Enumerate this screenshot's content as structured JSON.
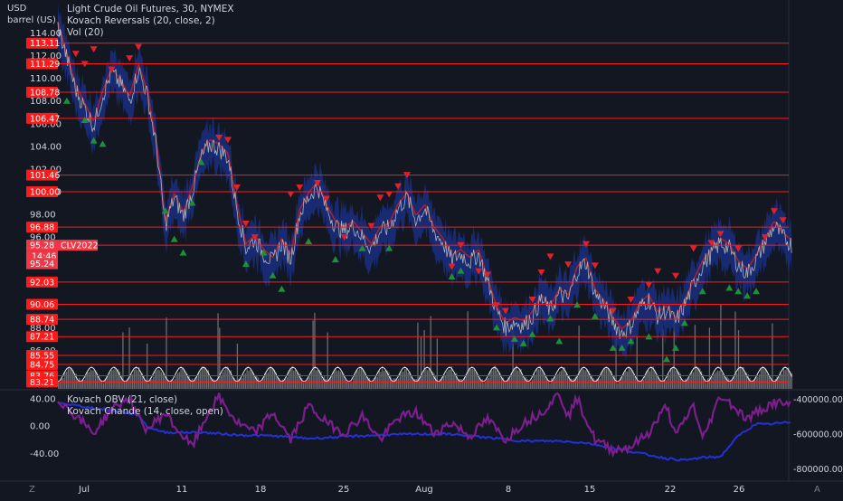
{
  "header": {
    "currency": "USD",
    "unit": "barrel (US)",
    "title": "Light Crude Oil Futures, 30, NYMEX",
    "indicators": [
      "Kovach Reversals (20, close, 2)",
      "Vol (20)"
    ]
  },
  "lower_pane": {
    "indicators": [
      "Kovach OBV (21, close)",
      "Kovach Chande (14, close, open)"
    ]
  },
  "bottom_bar": {
    "left_button": "Z",
    "right_button": "A"
  },
  "colors": {
    "background": "#131722",
    "level_line": "#ff1a1a",
    "price_line": "#b0b0b0",
    "band": "#1a2f80",
    "band_red": "#c81e1e",
    "up_marker": "#1f8f3a",
    "down_marker": "#e0202a",
    "volume": "#8a8a8a",
    "obv": "#2430d8",
    "chande": "#7b1f8c",
    "current_price": "#f23645"
  },
  "chart_data": [
    {
      "type": "line",
      "name": "price",
      "xticks": [
        "Jul",
        "11",
        "18",
        "25",
        "Aug",
        "8",
        "15",
        "22",
        "26"
      ],
      "yticks": [
        "114.00",
        "112.00",
        "110.00",
        "108.00",
        "106.00",
        "104.00",
        "102.00",
        "100.00",
        "98.00",
        "96.00",
        "90.00",
        "88.00",
        "86.00"
      ],
      "ylim": [
        82.6,
        115.8
      ],
      "level_lines": [
        113.11,
        111.29,
        108.78,
        106.47,
        101.46,
        100.0,
        96.88,
        95.28,
        92.03,
        90.06,
        88.74,
        87.21,
        85.55,
        84.75,
        83.76,
        83.21
      ],
      "level_labels": [
        "113.11",
        "111.29",
        "108.78",
        "106.47",
        "101.46",
        "100.00",
        "96.88",
        "92.03",
        "90.06",
        "88.74",
        "87.21",
        "85.55",
        "84.75",
        "83.76",
        "83.21"
      ],
      "top_line": 117.0,
      "last_price": {
        "value": "95.28",
        "symbol": "CLV2022",
        "countdown": "14:46",
        "bid": "95.24"
      },
      "x_range": [
        0,
        100
      ],
      "price_keypoints": [
        [
          0,
          114.6
        ],
        [
          2,
          109.0
        ],
        [
          4,
          105.8
        ],
        [
          5,
          108.5
        ],
        [
          6,
          110.5
        ],
        [
          7,
          109.5
        ],
        [
          8,
          108.0
        ],
        [
          9,
          110.8
        ],
        [
          10,
          108.5
        ],
        [
          11,
          104.0
        ],
        [
          12,
          97.0
        ],
        [
          13,
          99.5
        ],
        [
          14,
          97.8
        ],
        [
          15,
          100.0
        ],
        [
          16,
          103.0
        ],
        [
          17,
          104.2
        ],
        [
          18,
          103.8
        ],
        [
          19,
          103.0
        ],
        [
          20,
          98.5
        ],
        [
          21,
          95.0
        ],
        [
          22,
          95.8
        ],
        [
          23,
          94.5
        ],
        [
          24,
          93.8
        ],
        [
          25,
          95.5
        ],
        [
          26,
          94.0
        ],
        [
          27,
          98.0
        ],
        [
          28,
          99.5
        ],
        [
          29,
          100.5
        ],
        [
          30,
          98.5
        ],
        [
          31,
          97.0
        ],
        [
          32,
          96.5
        ],
        [
          33,
          97.0
        ],
        [
          34,
          96.0
        ],
        [
          35,
          95.0
        ],
        [
          36,
          96.5
        ],
        [
          37,
          96.8
        ],
        [
          38,
          98.5
        ],
        [
          39,
          99.5
        ],
        [
          40,
          97.5
        ],
        [
          41,
          98.5
        ],
        [
          42,
          96.5
        ],
        [
          43,
          95.5
        ],
        [
          44,
          94.0
        ],
        [
          45,
          94.5
        ],
        [
          46,
          93.8
        ],
        [
          47,
          94.5
        ],
        [
          48,
          92.0
        ],
        [
          49,
          89.5
        ],
        [
          50,
          88.0
        ],
        [
          51,
          88.5
        ],
        [
          52,
          88.2
        ],
        [
          53,
          89.0
        ],
        [
          54,
          90.5
        ],
        [
          55,
          89.5
        ],
        [
          56,
          91.0
        ],
        [
          57,
          90.5
        ],
        [
          58,
          93.0
        ],
        [
          59,
          93.8
        ],
        [
          60,
          91.0
        ],
        [
          61,
          90.0
        ],
        [
          62,
          88.5
        ],
        [
          63,
          87.5
        ],
        [
          64,
          88.2
        ],
        [
          65,
          89.8
        ],
        [
          66,
          90.5
        ],
        [
          67,
          89.0
        ],
        [
          68,
          89.5
        ],
        [
          69,
          88.5
        ],
        [
          70,
          90.0
        ],
        [
          71,
          91.8
        ],
        [
          72,
          93.5
        ],
        [
          73,
          94.5
        ],
        [
          74,
          95.5
        ],
        [
          75,
          95.0
        ],
        [
          76,
          93.5
        ],
        [
          77,
          92.8
        ],
        [
          78,
          94.0
        ],
        [
          79,
          95.5
        ],
        [
          80,
          97.0
        ],
        [
          81,
          96.0
        ],
        [
          82,
          95.28
        ]
      ],
      "sell_markers": [
        [
          2,
          112.2
        ],
        [
          3,
          111.3
        ],
        [
          4,
          112.6
        ],
        [
          6,
          110.8
        ],
        [
          8,
          111.8
        ],
        [
          9,
          112.8
        ],
        [
          18,
          104.8
        ],
        [
          19,
          104.6
        ],
        [
          20,
          100.4
        ],
        [
          21,
          97.2
        ],
        [
          22,
          96.0
        ],
        [
          26,
          99.8
        ],
        [
          27,
          100.4
        ],
        [
          29,
          100.8
        ],
        [
          30,
          99.4
        ],
        [
          32,
          96.0
        ],
        [
          35,
          97.0
        ],
        [
          36,
          99.5
        ],
        [
          37,
          99.8
        ],
        [
          38,
          100.5
        ],
        [
          39,
          101.5
        ],
        [
          44,
          93.4
        ],
        [
          45,
          95.3
        ],
        [
          47,
          93.0
        ],
        [
          48,
          92.7
        ],
        [
          49,
          90.0
        ],
        [
          50,
          89.5
        ],
        [
          53,
          90.5
        ],
        [
          54,
          92.9
        ],
        [
          55,
          94.3
        ],
        [
          57,
          93.6
        ],
        [
          59,
          95.4
        ],
        [
          60,
          93.5
        ],
        [
          62,
          89.5
        ],
        [
          64,
          90.5
        ],
        [
          66,
          91.8
        ],
        [
          67,
          93.0
        ],
        [
          69,
          92.6
        ],
        [
          71,
          95.0
        ],
        [
          73,
          95.5
        ],
        [
          74,
          96.3
        ],
        [
          76,
          95.0
        ],
        [
          79,
          96.0
        ],
        [
          80,
          98.3
        ],
        [
          81,
          97.5
        ]
      ],
      "buy_markers": [
        [
          1,
          108.0
        ],
        [
          3,
          106.3
        ],
        [
          4,
          104.5
        ],
        [
          5,
          104.2
        ],
        [
          12,
          98.3
        ],
        [
          13,
          95.8
        ],
        [
          14,
          94.6
        ],
        [
          15,
          99.0
        ],
        [
          16,
          102.6
        ],
        [
          21,
          93.6
        ],
        [
          23,
          94.6
        ],
        [
          24,
          92.6
        ],
        [
          25,
          91.4
        ],
        [
          28,
          95.6
        ],
        [
          31,
          94.0
        ],
        [
          34,
          95.0
        ],
        [
          37,
          95.0
        ],
        [
          44,
          92.5
        ],
        [
          45,
          93.0
        ],
        [
          49,
          88.0
        ],
        [
          51,
          87.0
        ],
        [
          52,
          86.6
        ],
        [
          53,
          87.4
        ],
        [
          55,
          88.8
        ],
        [
          56,
          86.8
        ],
        [
          58,
          90.0
        ],
        [
          60,
          89.0
        ],
        [
          62,
          86.2
        ],
        [
          63,
          86.2
        ],
        [
          64,
          86.8
        ],
        [
          66,
          87.2
        ],
        [
          68,
          85.2
        ],
        [
          69,
          86.2
        ],
        [
          70,
          88.4
        ],
        [
          72,
          91.2
        ],
        [
          75,
          91.5
        ],
        [
          76,
          91.2
        ],
        [
          77,
          90.8
        ],
        [
          78,
          91.2
        ]
      ]
    },
    {
      "type": "line",
      "name": "lower",
      "yticks_left": [
        "40.00",
        "0.00",
        "-40.00"
      ],
      "ylim_left": [
        -78,
        52
      ],
      "yticks_right": [
        "-400000.00",
        "-600000.00",
        "-800000.00"
      ],
      "ylim_right": [
        -860000,
        -350000
      ],
      "obv_keypoints": [
        [
          0,
          -420000
        ],
        [
          4,
          -450000
        ],
        [
          7,
          -470000
        ],
        [
          9,
          -490000
        ],
        [
          10,
          -560000
        ],
        [
          12,
          -590000
        ],
        [
          16,
          -590000
        ],
        [
          20,
          -605000
        ],
        [
          24,
          -610000
        ],
        [
          28,
          -625000
        ],
        [
          32,
          -615000
        ],
        [
          36,
          -605000
        ],
        [
          40,
          -600000
        ],
        [
          44,
          -600000
        ],
        [
          48,
          -620000
        ],
        [
          52,
          -640000
        ],
        [
          56,
          -640000
        ],
        [
          59,
          -650000
        ],
        [
          62,
          -680000
        ],
        [
          65,
          -710000
        ],
        [
          68,
          -740000
        ],
        [
          70,
          -750000
        ],
        [
          72,
          -735000
        ],
        [
          74,
          -730000
        ],
        [
          76,
          -610000
        ],
        [
          78,
          -540000
        ],
        [
          79,
          -545000
        ],
        [
          80,
          -540000
        ],
        [
          82,
          -530000
        ]
      ],
      "chande_keypoints": [
        [
          0,
          40
        ],
        [
          2,
          15
        ],
        [
          4,
          -10
        ],
        [
          6,
          25
        ],
        [
          8,
          42
        ],
        [
          9,
          10
        ],
        [
          10,
          -5
        ],
        [
          12,
          20
        ],
        [
          13,
          0
        ],
        [
          15,
          -30
        ],
        [
          17,
          25
        ],
        [
          18,
          42
        ],
        [
          20,
          5
        ],
        [
          22,
          -10
        ],
        [
          24,
          20
        ],
        [
          26,
          -20
        ],
        [
          28,
          30
        ],
        [
          30,
          5
        ],
        [
          32,
          -10
        ],
        [
          34,
          15
        ],
        [
          36,
          -20
        ],
        [
          38,
          12
        ],
        [
          40,
          20
        ],
        [
          42,
          -10
        ],
        [
          44,
          5
        ],
        [
          46,
          -15
        ],
        [
          48,
          10
        ],
        [
          50,
          -20
        ],
        [
          52,
          5
        ],
        [
          54,
          20
        ],
        [
          56,
          48
        ],
        [
          57,
          15
        ],
        [
          58,
          40
        ],
        [
          60,
          -20
        ],
        [
          62,
          -35
        ],
        [
          64,
          -30
        ],
        [
          66,
          -10
        ],
        [
          68,
          30
        ],
        [
          69,
          -15
        ],
        [
          71,
          32
        ],
        [
          72,
          -20
        ],
        [
          74,
          45
        ],
        [
          75,
          35
        ],
        [
          77,
          10
        ],
        [
          78,
          20
        ],
        [
          80,
          35
        ],
        [
          82,
          30
        ]
      ]
    }
  ]
}
